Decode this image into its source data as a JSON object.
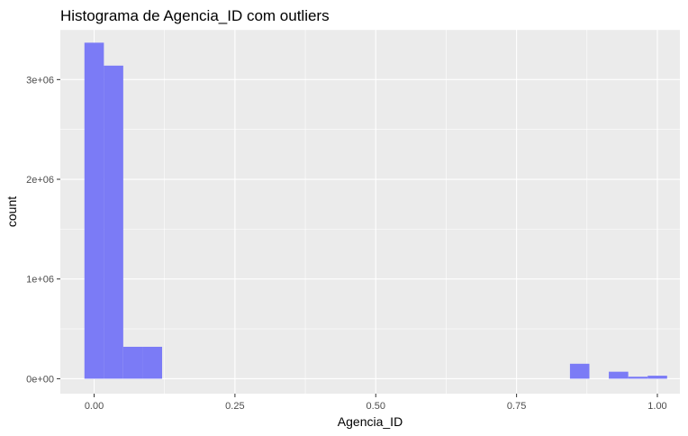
{
  "chart_data": {
    "type": "bar",
    "title": "Histograma de Agencia_ID com outliers",
    "xlabel": "Agencia_ID",
    "ylabel": "count",
    "xlim": [
      -0.06,
      1.04
    ],
    "ylim": [
      -150000.0,
      3500000.0
    ],
    "x_ticks": [
      {
        "value": 0.0,
        "label": "0.00"
      },
      {
        "value": 0.25,
        "label": "0.25"
      },
      {
        "value": 0.5,
        "label": "0.50"
      },
      {
        "value": 0.75,
        "label": "0.75"
      },
      {
        "value": 1.0,
        "label": "1.00"
      }
    ],
    "y_ticks": [
      {
        "value": 0,
        "label": "0e+00"
      },
      {
        "value": 1000000,
        "label": "1e+06"
      },
      {
        "value": 2000000,
        "label": "2e+06"
      },
      {
        "value": 3000000,
        "label": "3e+06"
      }
    ],
    "bin_width": 0.0345,
    "bins": [
      {
        "x0": -0.0172,
        "count": 3370000
      },
      {
        "x0": 0.0172,
        "count": 3140000
      },
      {
        "x0": 0.0517,
        "count": 320000
      },
      {
        "x0": 0.0862,
        "count": 320000
      },
      {
        "x0": 0.8448,
        "count": 150000
      },
      {
        "x0": 0.9138,
        "count": 70000
      },
      {
        "x0": 0.9483,
        "count": 20000
      },
      {
        "x0": 0.9828,
        "count": 30000
      }
    ],
    "grid": true,
    "colors": {
      "panel_background": "#ebebeb",
      "grid_major": "#ffffff",
      "bar_fill": "#7b7bf6",
      "tick_color": "#333333"
    }
  }
}
